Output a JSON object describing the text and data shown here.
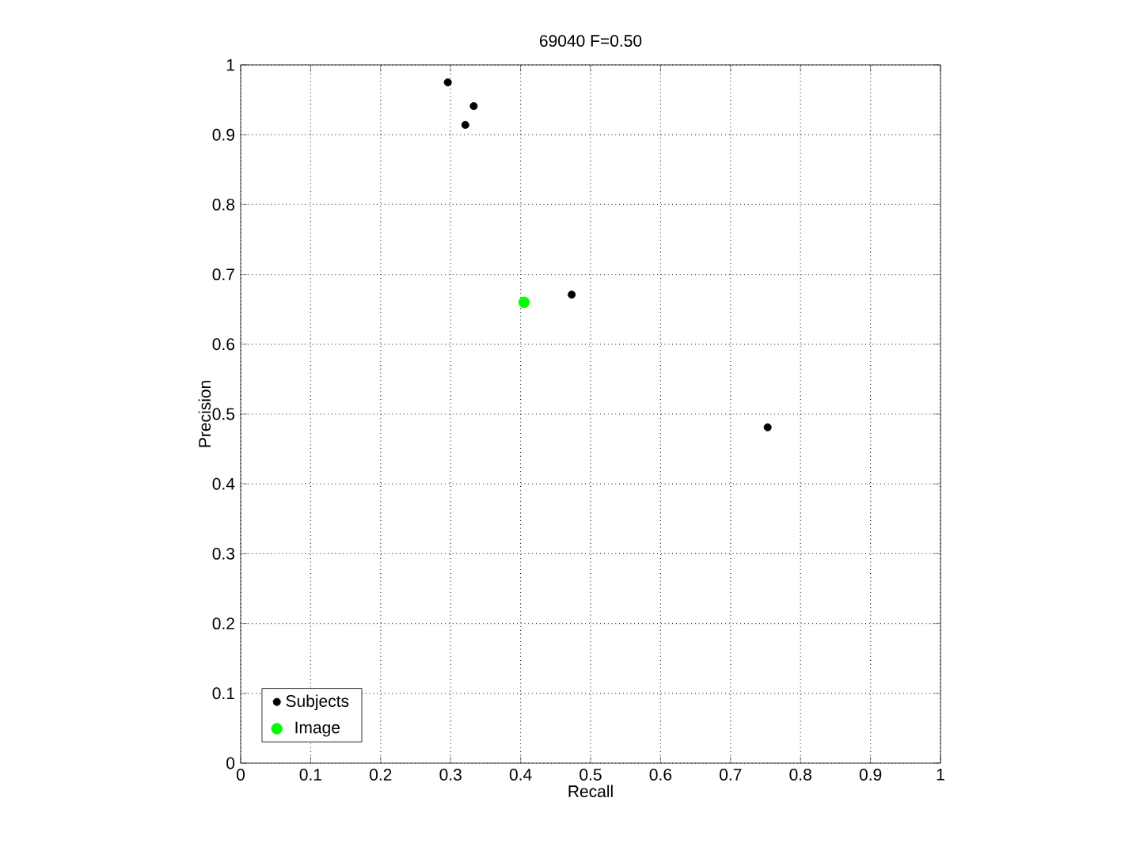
{
  "chart_data": {
    "type": "scatter",
    "title": "69040 F=0.50",
    "xlabel": "Recall",
    "ylabel": "Precision",
    "series": [
      {
        "name": "Subjects",
        "color": "#000000",
        "x": [
          0.296,
          0.333,
          0.321,
          0.473,
          0.753
        ],
        "values": [
          0.975,
          0.941,
          0.914,
          0.671,
          0.481
        ]
      },
      {
        "name": "Image",
        "color": "#00ff00",
        "x": [
          0.405
        ],
        "values": [
          0.66
        ]
      }
    ],
    "xlim": [
      0,
      1
    ],
    "ylim": [
      0,
      1
    ],
    "xticks": [
      0,
      0.1,
      0.2,
      0.3,
      0.4,
      0.5,
      0.6,
      0.7,
      0.8,
      0.9,
      1
    ],
    "yticks": [
      0,
      0.1,
      0.2,
      0.3,
      0.4,
      0.5,
      0.6,
      0.7,
      0.8,
      0.9,
      1
    ],
    "grid": true,
    "legend": "bottom left"
  }
}
